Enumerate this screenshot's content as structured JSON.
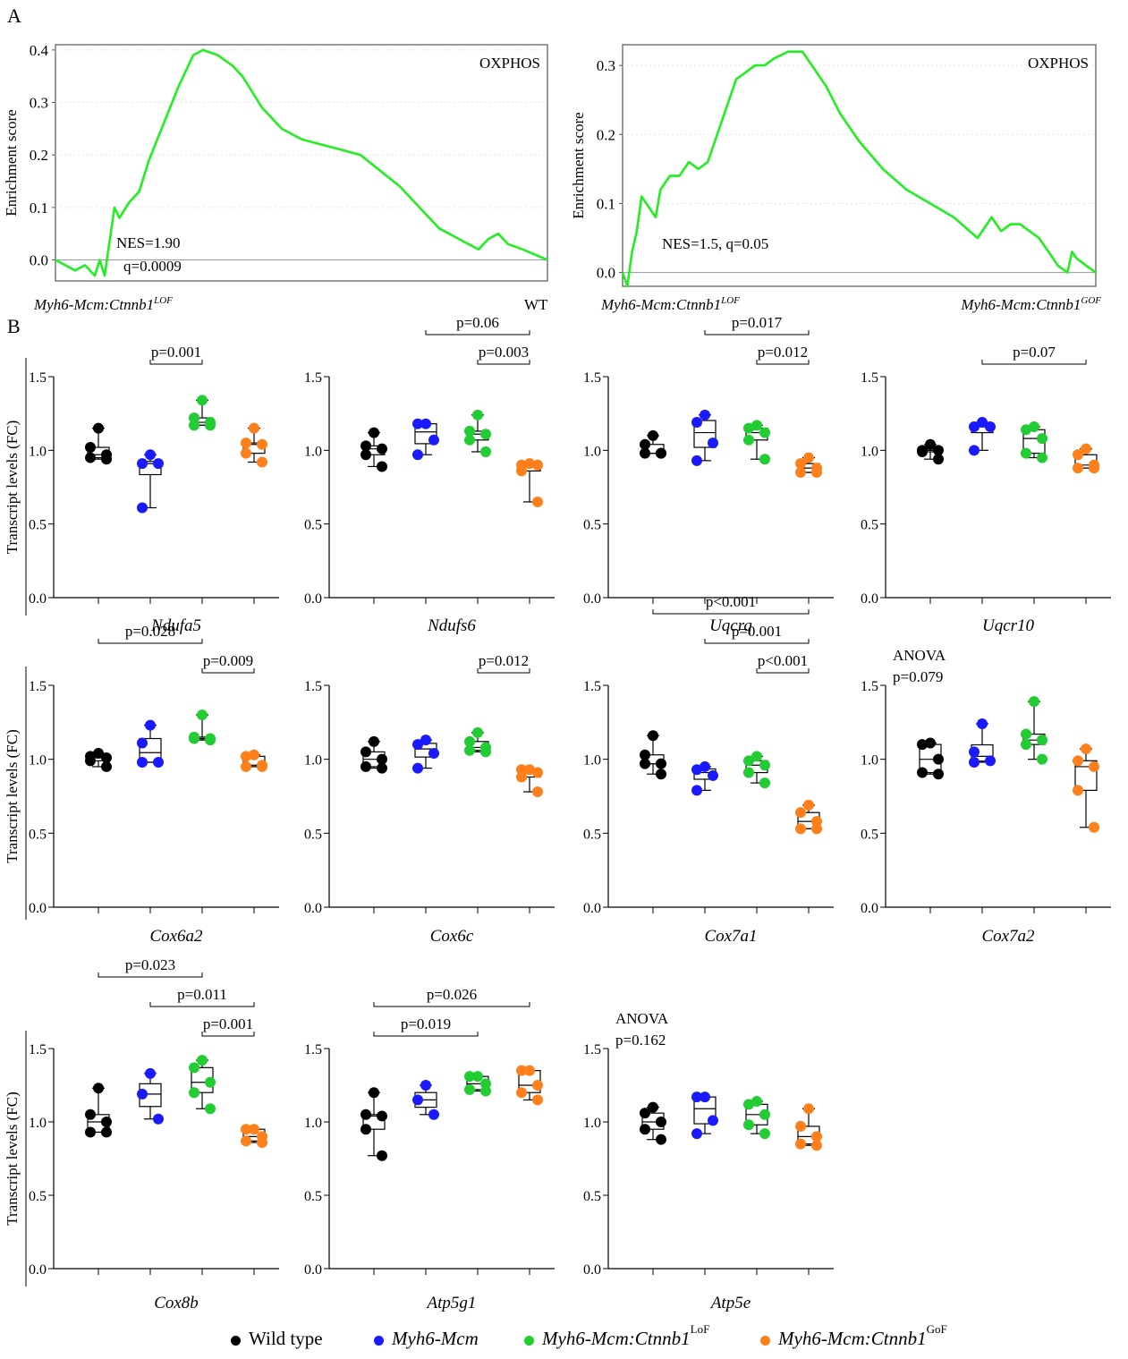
{
  "panel_labels": [
    "A",
    "B"
  ],
  "colors": {
    "gsea_line": "#22ee22",
    "wild_type": "#000000",
    "myh6_mcm": "#1a1aff",
    "lof": "#22cc33",
    "gof": "#ff7f1a"
  },
  "legend": [
    {
      "label": "Wild type",
      "sup": "",
      "italic": false,
      "color": "#000000"
    },
    {
      "label": "Myh6-Mcm",
      "sup": "",
      "italic": true,
      "color": "#1a1aff"
    },
    {
      "label": "Myh6-Mcm:Ctnnb1",
      "sup": "LoF",
      "italic": true,
      "color": "#22cc33"
    },
    {
      "label": "Myh6-Mcm:Ctnnb1",
      "sup": "GoF",
      "italic": true,
      "color": "#ff7f1a"
    }
  ],
  "chart_data": [
    {
      "type": "line",
      "panel": "A",
      "title": "OXPHOS",
      "ylabel": "Enrichment score",
      "ylim": [
        -0.04,
        0.41
      ],
      "yticks": [
        "0.0",
        "0.1",
        "0.2",
        "0.3",
        "0.4"
      ],
      "left_label": "Myh6-Mcm:Ctnnb1",
      "left_label_sup": "LOF",
      "right_label": "WT",
      "right_label_sup": "",
      "annotation": [
        "NES=1.90",
        "q=0.0009"
      ],
      "x": [
        0,
        0.04,
        0.06,
        0.08,
        0.09,
        0.1,
        0.12,
        0.13,
        0.15,
        0.17,
        0.19,
        0.22,
        0.25,
        0.28,
        0.3,
        0.33,
        0.36,
        0.38,
        0.42,
        0.46,
        0.5,
        0.54,
        0.58,
        0.62,
        0.66,
        0.7,
        0.74,
        0.78,
        0.82,
        0.86,
        0.88,
        0.9,
        0.92,
        0.95,
        1.0
      ],
      "y": [
        0.0,
        -0.02,
        -0.01,
        -0.03,
        0.0,
        -0.03,
        0.1,
        0.08,
        0.11,
        0.13,
        0.19,
        0.26,
        0.33,
        0.39,
        0.4,
        0.39,
        0.37,
        0.35,
        0.29,
        0.25,
        0.23,
        0.22,
        0.21,
        0.2,
        0.17,
        0.14,
        0.1,
        0.06,
        0.04,
        0.02,
        0.04,
        0.05,
        0.03,
        0.02,
        0.0
      ]
    },
    {
      "type": "line",
      "panel": "A",
      "title": "OXPHOS",
      "ylabel": "Enrichment score",
      "ylim": [
        -0.02,
        0.33
      ],
      "yticks": [
        "0.0",
        "0.1",
        "0.2",
        "0.3"
      ],
      "left_label": "Myh6-Mcm:Ctnnb1",
      "left_label_sup": "LOF",
      "right_label": "Myh6-Mcm:Ctnnb1",
      "right_label_sup": "GOF",
      "annotation": [
        "NES=1.5, q=0.05"
      ],
      "x": [
        0,
        0.01,
        0.02,
        0.03,
        0.04,
        0.05,
        0.07,
        0.08,
        0.1,
        0.12,
        0.14,
        0.16,
        0.18,
        0.2,
        0.22,
        0.24,
        0.26,
        0.28,
        0.3,
        0.32,
        0.35,
        0.38,
        0.4,
        0.43,
        0.46,
        0.5,
        0.55,
        0.6,
        0.65,
        0.7,
        0.75,
        0.78,
        0.8,
        0.82,
        0.84,
        0.86,
        0.88,
        0.9,
        0.92,
        0.94,
        0.95,
        0.96,
        0.98,
        1.0
      ],
      "y": [
        0.0,
        -0.02,
        0.03,
        0.06,
        0.11,
        0.1,
        0.08,
        0.12,
        0.14,
        0.14,
        0.16,
        0.15,
        0.16,
        0.2,
        0.24,
        0.28,
        0.29,
        0.3,
        0.3,
        0.31,
        0.32,
        0.32,
        0.3,
        0.27,
        0.23,
        0.19,
        0.15,
        0.12,
        0.1,
        0.08,
        0.05,
        0.08,
        0.06,
        0.07,
        0.07,
        0.06,
        0.05,
        0.03,
        0.01,
        0.0,
        0.03,
        0.02,
        0.01,
        0.0
      ]
    },
    {
      "type": "scatter",
      "panel": "B",
      "gene": "Ndufa5",
      "ylabel": "Transcript levels (FC)",
      "ylim": [
        0,
        1.5
      ],
      "yticks": [
        "0.0",
        "0.5",
        "1.0",
        "1.5"
      ],
      "stats_text": [],
      "series": [
        {
          "values": [
            1.15,
            1.02,
            0.97,
            0.95,
            0.94
          ]
        },
        {
          "values": [
            0.97,
            0.91,
            0.91,
            0.61
          ]
        },
        {
          "values": [
            1.34,
            1.22,
            1.19,
            1.17,
            1.17
          ]
        },
        {
          "values": [
            1.15,
            1.05,
            1.04,
            0.98,
            0.92
          ]
        }
      ],
      "comparisons": [
        {
          "from": 1,
          "to": 2,
          "label": "p=0.001"
        }
      ]
    },
    {
      "type": "scatter",
      "panel": "B",
      "gene": "Ndufs6",
      "ylabel": "",
      "ylim": [
        0,
        1.5
      ],
      "yticks": [
        "0.0",
        "0.5",
        "1.0",
        "1.5"
      ],
      "stats_text": [],
      "series": [
        {
          "values": [
            1.12,
            1.03,
            1.01,
            0.97,
            0.89
          ]
        },
        {
          "values": [
            1.18,
            1.18,
            1.07,
            0.97
          ]
        },
        {
          "values": [
            1.24,
            1.13,
            1.11,
            1.07,
            0.99
          ]
        },
        {
          "values": [
            0.91,
            0.9,
            0.9,
            0.86,
            0.65
          ]
        }
      ],
      "comparisons": [
        {
          "from": 1,
          "to": 3,
          "label": "p=0.06"
        },
        {
          "from": 2,
          "to": 3,
          "label": "p=0.003"
        }
      ]
    },
    {
      "type": "scatter",
      "panel": "B",
      "gene": "Uqcrq",
      "ylabel": "",
      "ylim": [
        0,
        1.5
      ],
      "yticks": [
        "0.0",
        "0.5",
        "1.0",
        "1.5"
      ],
      "stats_text": [],
      "series": [
        {
          "values": [
            1.1,
            1.04,
            0.98,
            0.98,
            0.98
          ]
        },
        {
          "values": [
            1.24,
            1.19,
            1.05,
            0.93
          ]
        },
        {
          "values": [
            1.17,
            1.15,
            1.12,
            1.07,
            0.94
          ]
        },
        {
          "values": [
            0.95,
            0.91,
            0.88,
            0.85,
            0.85
          ]
        }
      ],
      "comparisons": [
        {
          "from": 1,
          "to": 3,
          "label": "p=0.017"
        },
        {
          "from": 2,
          "to": 3,
          "label": "p=0.012"
        }
      ]
    },
    {
      "type": "scatter",
      "panel": "B",
      "gene": "Uqcr10",
      "ylabel": "",
      "ylim": [
        0,
        1.5
      ],
      "yticks": [
        "0.0",
        "0.5",
        "1.0",
        "1.5"
      ],
      "stats_text": [],
      "series": [
        {
          "values": [
            1.04,
            1.0,
            1.0,
            0.99,
            0.94
          ]
        },
        {
          "values": [
            1.19,
            1.16,
            1.16,
            1.0
          ]
        },
        {
          "values": [
            1.16,
            1.14,
            1.08,
            0.98,
            0.95
          ]
        },
        {
          "values": [
            1.01,
            0.97,
            0.9,
            0.88,
            0.88
          ]
        }
      ],
      "comparisons": [
        {
          "from": 1,
          "to": 3,
          "label": "p=0.07"
        }
      ]
    },
    {
      "type": "scatter",
      "panel": "B",
      "gene": "Cox6a2",
      "ylabel": "Transcript levels (FC)",
      "ylim": [
        0,
        1.5
      ],
      "yticks": [
        "0.0",
        "0.5",
        "1.0",
        "1.5"
      ],
      "stats_text": [],
      "series": [
        {
          "values": [
            1.04,
            1.02,
            1.01,
            0.99,
            0.95
          ]
        },
        {
          "values": [
            1.23,
            1.11,
            0.98,
            0.98
          ]
        },
        {
          "values": [
            1.3,
            1.15,
            1.14,
            1.14,
            1.13
          ]
        },
        {
          "values": [
            1.03,
            1.02,
            0.96,
            0.95,
            0.95
          ]
        }
      ],
      "comparisons": [
        {
          "from": 0,
          "to": 2,
          "label": "p=0.028"
        },
        {
          "from": 2,
          "to": 3,
          "label": "p=0.009"
        }
      ]
    },
    {
      "type": "scatter",
      "panel": "B",
      "gene": "Cox6c",
      "ylabel": "",
      "ylim": [
        0,
        1.5
      ],
      "yticks": [
        "0.0",
        "0.5",
        "1.0",
        "1.5"
      ],
      "stats_text": [],
      "series": [
        {
          "values": [
            1.12,
            1.05,
            1.0,
            0.95,
            0.94
          ]
        },
        {
          "values": [
            1.13,
            1.1,
            1.04,
            0.94
          ]
        },
        {
          "values": [
            1.18,
            1.12,
            1.08,
            1.06,
            1.05
          ]
        },
        {
          "values": [
            0.93,
            0.93,
            0.91,
            0.88,
            0.78
          ]
        }
      ],
      "comparisons": [
        {
          "from": 2,
          "to": 3,
          "label": "p=0.012"
        }
      ]
    },
    {
      "type": "scatter",
      "panel": "B",
      "gene": "Cox7a1",
      "ylabel": "",
      "ylim": [
        0,
        1.5
      ],
      "yticks": [
        "0.0",
        "0.5",
        "1.0",
        "1.5"
      ],
      "stats_text": [],
      "series": [
        {
          "values": [
            1.16,
            1.03,
            0.97,
            0.97,
            0.9
          ]
        },
        {
          "values": [
            0.95,
            0.93,
            0.89,
            0.79
          ]
        },
        {
          "values": [
            1.02,
            0.99,
            0.96,
            0.91,
            0.84
          ]
        },
        {
          "values": [
            0.69,
            0.64,
            0.58,
            0.53,
            0.53
          ]
        }
      ],
      "comparisons": [
        {
          "from": 0,
          "to": 3,
          "label": "p<0.001"
        },
        {
          "from": 1,
          "to": 3,
          "label": "p=0.001"
        },
        {
          "from": 2,
          "to": 3,
          "label": "p<0.001"
        }
      ]
    },
    {
      "type": "scatter",
      "panel": "B",
      "gene": "Cox7a2",
      "ylabel": "",
      "ylim": [
        0,
        1.5
      ],
      "yticks": [
        "0.0",
        "0.5",
        "1.0",
        "1.5"
      ],
      "stats_text": [
        "ANOVA",
        "p=0.079"
      ],
      "series": [
        {
          "values": [
            1.11,
            1.1,
            1.0,
            0.91,
            0.9
          ]
        },
        {
          "values": [
            1.24,
            1.05,
            0.99,
            0.98
          ]
        },
        {
          "values": [
            1.39,
            1.17,
            1.13,
            1.1,
            1.0
          ]
        },
        {
          "values": [
            1.07,
            0.99,
            0.95,
            0.79,
            0.54
          ]
        }
      ],
      "comparisons": []
    },
    {
      "type": "scatter",
      "panel": "B",
      "gene": "Cox8b",
      "ylabel": "Transcript levels (FC)",
      "ylim": [
        0,
        1.5
      ],
      "yticks": [
        "0.0",
        "0.5",
        "1.0",
        "1.5"
      ],
      "stats_text": [],
      "series": [
        {
          "values": [
            1.23,
            1.05,
            1.0,
            0.93,
            0.93
          ]
        },
        {
          "values": [
            1.33,
            1.19,
            1.02
          ]
        },
        {
          "values": [
            1.42,
            1.37,
            1.27,
            1.2,
            1.09
          ]
        },
        {
          "values": [
            0.95,
            0.95,
            0.9,
            0.87,
            0.86
          ]
        }
      ],
      "comparisons": [
        {
          "from": 0,
          "to": 2,
          "label": "p=0.023"
        },
        {
          "from": 1,
          "to": 3,
          "label": "p=0.011"
        },
        {
          "from": 2,
          "to": 3,
          "label": "p=0.001"
        }
      ]
    },
    {
      "type": "scatter",
      "panel": "B",
      "gene": "Atp5g1",
      "ylabel": "",
      "ylim": [
        0,
        1.5
      ],
      "yticks": [
        "0.0",
        "0.5",
        "1.0",
        "1.5"
      ],
      "stats_text": [],
      "series": [
        {
          "values": [
            1.2,
            1.05,
            1.04,
            0.95,
            0.77
          ]
        },
        {
          "values": [
            1.25,
            1.15,
            1.05
          ]
        },
        {
          "values": [
            1.31,
            1.31,
            1.26,
            1.22,
            1.21
          ]
        },
        {
          "values": [
            1.35,
            1.35,
            1.25,
            1.2,
            1.15
          ]
        }
      ],
      "comparisons": [
        {
          "from": 0,
          "to": 3,
          "label": "p=0.026"
        },
        {
          "from": 0,
          "to": 2,
          "label": "p=0.019"
        }
      ]
    },
    {
      "type": "scatter",
      "panel": "B",
      "gene": "Atp5e",
      "ylabel": "",
      "ylim": [
        0,
        1.5
      ],
      "yticks": [
        "0.0",
        "0.5",
        "1.0",
        "1.5"
      ],
      "stats_text": [
        "ANOVA",
        "p=0.162"
      ],
      "series": [
        {
          "values": [
            1.1,
            1.06,
            1.0,
            0.95,
            0.88
          ]
        },
        {
          "values": [
            1.17,
            1.17,
            1.01,
            0.92
          ]
        },
        {
          "values": [
            1.14,
            1.12,
            1.05,
            0.98,
            0.92
          ]
        },
        {
          "values": [
            1.09,
            0.97,
            0.9,
            0.85,
            0.84
          ]
        }
      ],
      "comparisons": []
    }
  ]
}
